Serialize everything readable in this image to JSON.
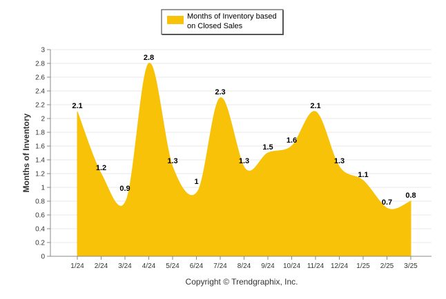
{
  "chart_data": {
    "type": "area",
    "categories": [
      "1/24",
      "2/24",
      "3/24",
      "4/24",
      "5/24",
      "6/24",
      "7/24",
      "8/24",
      "9/24",
      "10/24",
      "11/24",
      "12/24",
      "1/25",
      "2/25",
      "3/25"
    ],
    "series": [
      {
        "name_lines": [
          "Months of Inventory based",
          "on Closed Sales"
        ],
        "values": [
          2.1,
          1.2,
          0.9,
          2.8,
          1.3,
          1.0,
          2.3,
          1.3,
          1.5,
          1.6,
          2.1,
          1.3,
          1.1,
          0.7,
          0.8
        ],
        "labels": [
          "2.1",
          "1.2",
          "0.9",
          "2.8",
          "1.3",
          "1",
          "2.3",
          "1.3",
          "1.5",
          "1.6",
          "2.1",
          "1.3",
          "1.1",
          "0.7",
          "0.8"
        ],
        "color": "#f7c207",
        "curve_min": [
          null,
          null,
          0.81,
          null,
          null,
          0.94,
          null,
          1.27,
          null,
          null,
          null,
          null,
          null,
          0.69,
          null
        ]
      }
    ],
    "ylabel": "Months of Inventory",
    "ylim": [
      0,
      3
    ],
    "yticks": [
      "0",
      "0.2",
      "0.4",
      "0.6",
      "0.8",
      "1",
      "1.2",
      "1.4",
      "1.6",
      "1.8",
      "2",
      "2.2",
      "2.4",
      "2.6",
      "2.8",
      "3"
    ],
    "grid": true,
    "legend": "top-center"
  },
  "footer": {
    "credit": "Copyright © Trendgraphix, Inc."
  }
}
